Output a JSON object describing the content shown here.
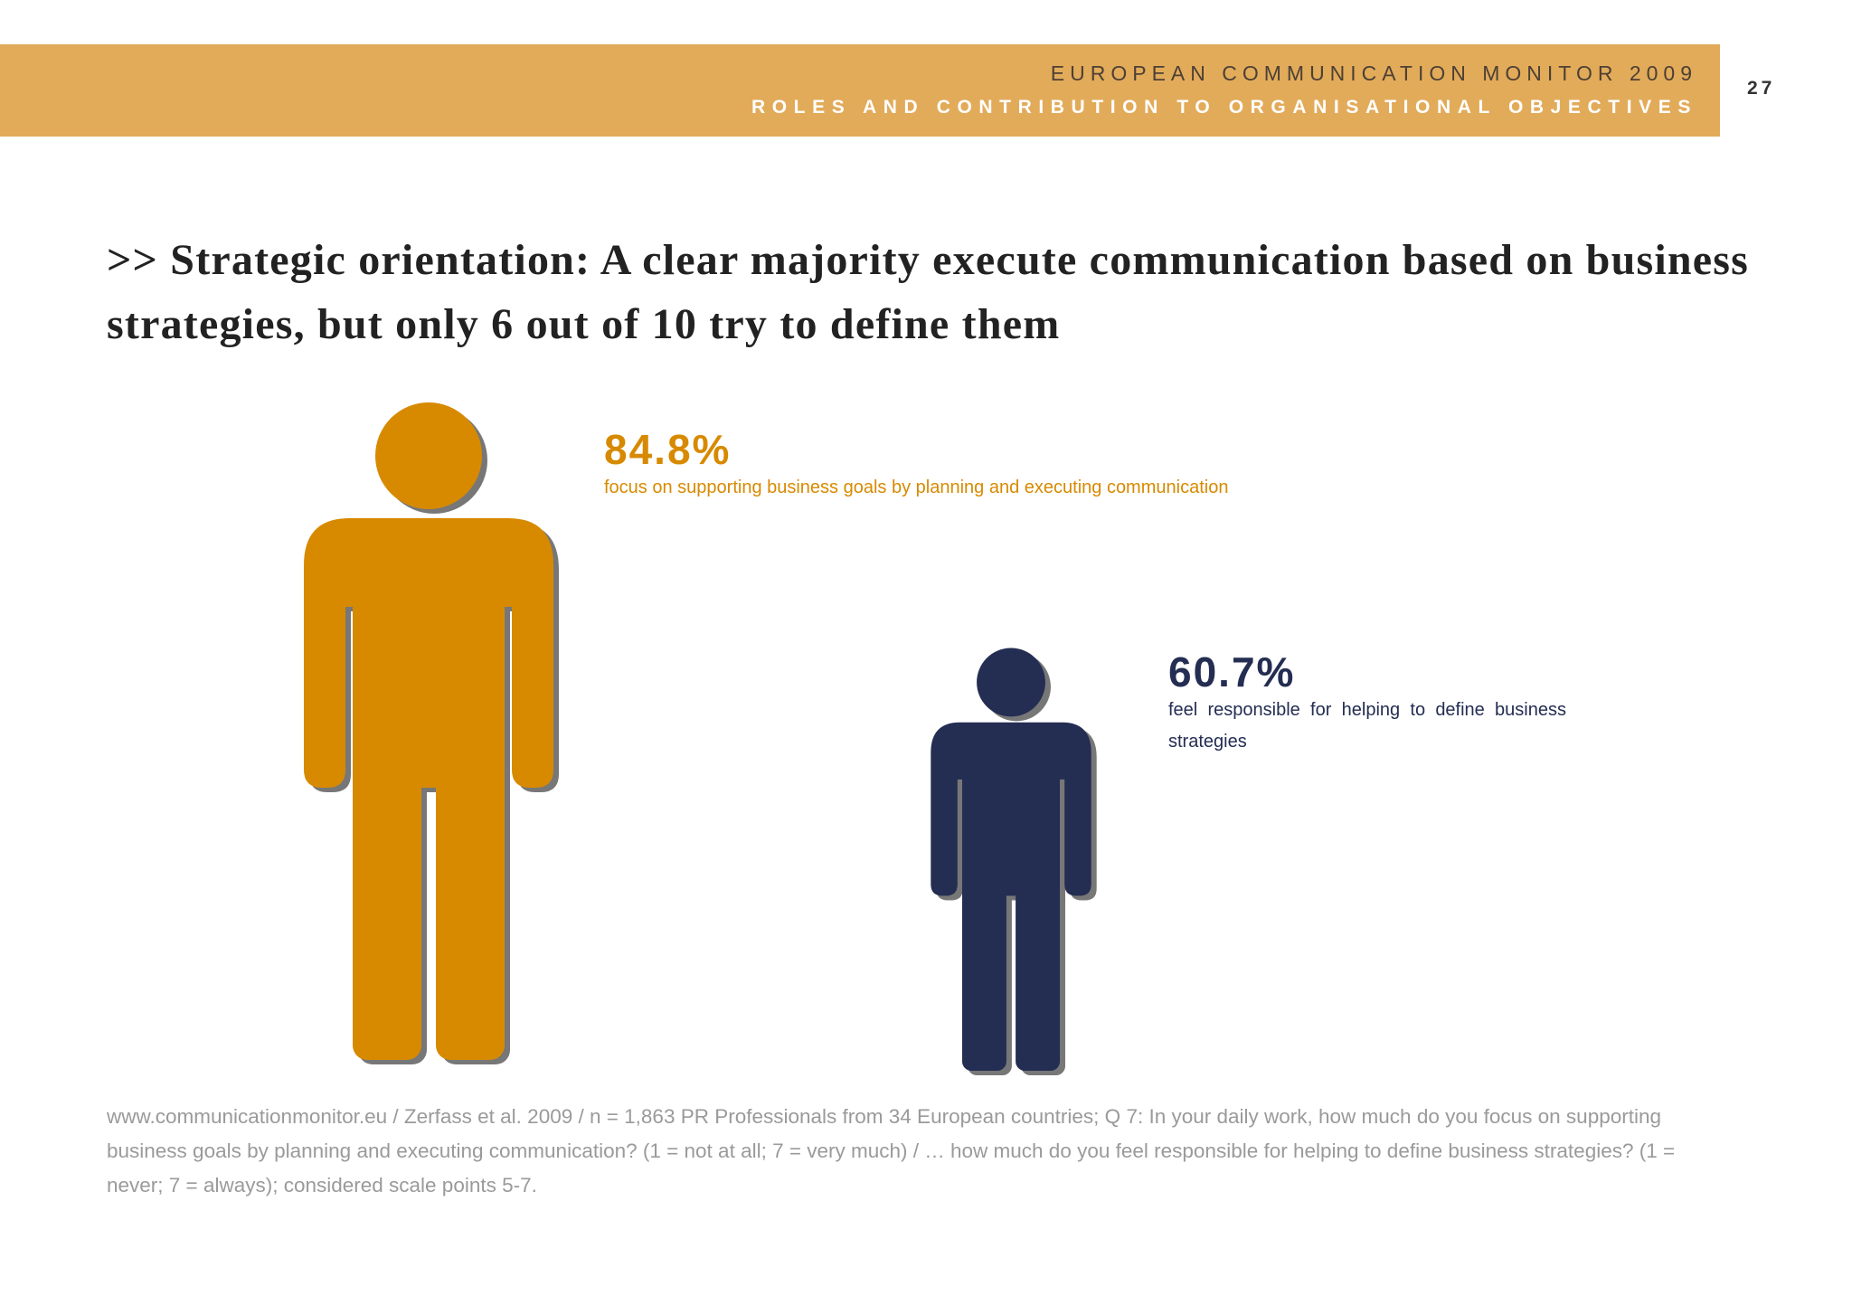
{
  "header": {
    "title": "EUROPEAN COMMUNICATION MONITOR 2009",
    "subtitle": "ROLES AND CONTRIBUTION TO ORGANISATIONAL OBJECTIVES",
    "page_number": "27"
  },
  "headline": ">> Strategic orientation: A clear majority execute communication based on business strategies, but only 6 out of 10 try to define them",
  "colors": {
    "accent_band": "#e2ab5a",
    "orange": "#d78a00",
    "navy": "#242d52",
    "shadow": "#4a4a4a"
  },
  "chart_data": {
    "type": "bar",
    "categories": [
      "focus on supporting business goals by planning and executing communication",
      "feel responsible for helping to define business strategies"
    ],
    "values": [
      84.8,
      60.7
    ],
    "unit": "%",
    "value_labels": [
      "84.8%",
      "60.7%"
    ],
    "colors": [
      "#d78a00",
      "#242d52"
    ]
  },
  "stats": [
    {
      "value": "84.8%",
      "caption": "focus on supporting business goals by planning and executing communication"
    },
    {
      "value": "60.7%",
      "caption": "feel responsible for helping to define business strategies"
    }
  ],
  "footnote": "www.communicationmonitor.eu / Zerfass et al. 2009 / n = 1,863 PR Professionals from 34 European countries; Q 7: In your daily work, how much do you focus on supporting business goals by planning and executing communication? (1 = not at all; 7 = very much) / … how much do you feel responsible for helping to define business strategies? (1 = never; 7 = always); considered scale points 5-7."
}
